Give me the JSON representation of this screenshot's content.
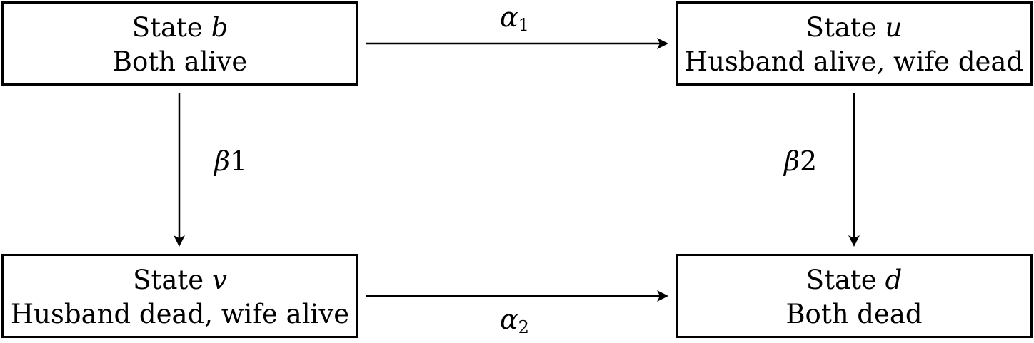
{
  "states": {
    "b": {
      "title": "State",
      "symbol": "b",
      "description": "Both alive"
    },
    "u": {
      "title": "State",
      "symbol": "u",
      "description": "Husband alive, wife dead"
    },
    "v": {
      "title": "State",
      "symbol": "v",
      "description": "Husband dead, wife alive"
    },
    "d": {
      "title": "State",
      "symbol": "d",
      "description": "Both dead"
    }
  },
  "transitions": {
    "alpha1": {
      "symbol": "α",
      "subscript": "1"
    },
    "alpha2": {
      "symbol": "α",
      "subscript": "2"
    },
    "beta1": {
      "symbol": "β",
      "suffix": "1"
    },
    "beta2": {
      "symbol": "β",
      "suffix": "2"
    }
  }
}
